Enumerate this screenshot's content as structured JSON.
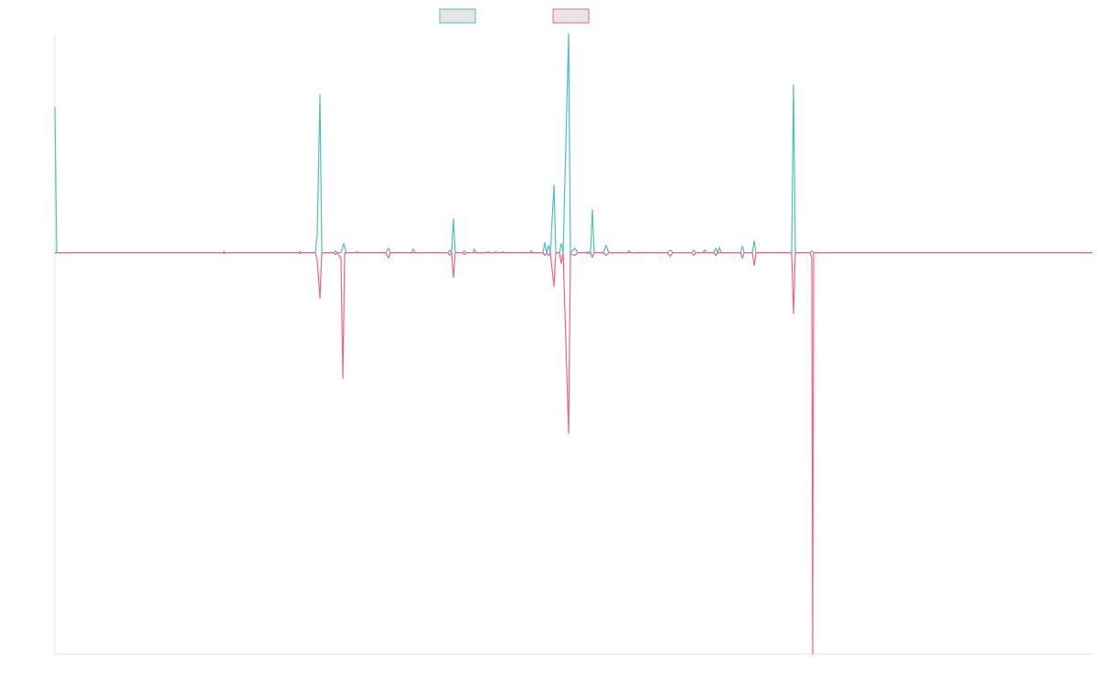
{
  "chart_data": {
    "type": "line",
    "title": "",
    "xlabel": "",
    "ylabel": "",
    "legend_position": "top-center",
    "grid": false,
    "x_range": [
      0,
      1135
    ],
    "ylim": [
      -440,
      240
    ],
    "series": [
      {
        "color": "#4bc0c0",
        "fill": "#e6e6e6",
        "points": [
          [
            0,
            160
          ],
          [
            2,
            0
          ],
          [
            184,
            0
          ],
          [
            185,
            1
          ],
          [
            186,
            0
          ],
          [
            267,
            0
          ],
          [
            268,
            1
          ],
          [
            269,
            0
          ],
          [
            285,
            0
          ],
          [
            287,
            20
          ],
          [
            290,
            173
          ],
          [
            292,
            0
          ],
          [
            305,
            0
          ],
          [
            307,
            2
          ],
          [
            309,
            0
          ],
          [
            313,
            0
          ],
          [
            316,
            10
          ],
          [
            319,
            0
          ],
          [
            329,
            0
          ],
          [
            331,
            1
          ],
          [
            333,
            0
          ],
          [
            362,
            0
          ],
          [
            365,
            5
          ],
          [
            367,
            0
          ],
          [
            390,
            0
          ],
          [
            392,
            4
          ],
          [
            394,
            0
          ],
          [
            430,
            0
          ],
          [
            432,
            3
          ],
          [
            434,
            0
          ],
          [
            436,
            37
          ],
          [
            438,
            0
          ],
          [
            446,
            0
          ],
          [
            448,
            2
          ],
          [
            450,
            0
          ],
          [
            457,
            0
          ],
          [
            459,
            4
          ],
          [
            461,
            0
          ],
          [
            472,
            0
          ],
          [
            474,
            1
          ],
          [
            476,
            0
          ],
          [
            480,
            0
          ],
          [
            482,
            1
          ],
          [
            484,
            0
          ],
          [
            488,
            0
          ],
          [
            490,
            1
          ],
          [
            492,
            0
          ],
          [
            519,
            0
          ],
          [
            521,
            2
          ],
          [
            523,
            0
          ],
          [
            534,
            0
          ],
          [
            536,
            11
          ],
          [
            538,
            0
          ],
          [
            540,
            8
          ],
          [
            542,
            0
          ],
          [
            546,
            74
          ],
          [
            548,
            0
          ],
          [
            552,
            0
          ],
          [
            554,
            10
          ],
          [
            556,
            0
          ],
          [
            562,
            240
          ],
          [
            564,
            0
          ],
          [
            566,
            2
          ],
          [
            569,
            5
          ],
          [
            572,
            0
          ],
          [
            582,
            0
          ],
          [
            584,
            1
          ],
          [
            586,
            0
          ],
          [
            588,
            47
          ],
          [
            590,
            0
          ],
          [
            600,
            0
          ],
          [
            603,
            8
          ],
          [
            606,
            0
          ],
          [
            626,
            0
          ],
          [
            628,
            2
          ],
          [
            630,
            0
          ],
          [
            670,
            0
          ],
          [
            673,
            3
          ],
          [
            676,
            0
          ],
          [
            697,
            0
          ],
          [
            699,
            3
          ],
          [
            701,
            0
          ],
          [
            709,
            0
          ],
          [
            711,
            3
          ],
          [
            713,
            0
          ],
          [
            721,
            0
          ],
          [
            723,
            5
          ],
          [
            725,
            0
          ],
          [
            727,
            6
          ],
          [
            729,
            0
          ],
          [
            750,
            0
          ],
          [
            752,
            7
          ],
          [
            754,
            0
          ],
          [
            763,
            0
          ],
          [
            765,
            13
          ],
          [
            767,
            0
          ],
          [
            806,
            0
          ],
          [
            808,
            184
          ],
          [
            810,
            0
          ],
          [
            826,
            0
          ],
          [
            828,
            2
          ],
          [
            830,
            0
          ],
          [
            1135,
            0
          ]
        ]
      },
      {
        "color": "#f06388",
        "fill": "#e6e6e6",
        "points": [
          [
            0,
            0
          ],
          [
            184,
            0
          ],
          [
            185,
            -1
          ],
          [
            186,
            0
          ],
          [
            267,
            0
          ],
          [
            268,
            -1
          ],
          [
            269,
            0
          ],
          [
            285,
            0
          ],
          [
            287,
            -8
          ],
          [
            290,
            -50
          ],
          [
            292,
            0
          ],
          [
            305,
            0
          ],
          [
            307,
            -2
          ],
          [
            309,
            0
          ],
          [
            311,
            -4
          ],
          [
            313,
            -5
          ],
          [
            315,
            -138
          ],
          [
            317,
            0
          ],
          [
            362,
            0
          ],
          [
            365,
            -6
          ],
          [
            367,
            0
          ],
          [
            430,
            0
          ],
          [
            432,
            -3
          ],
          [
            434,
            0
          ],
          [
            436,
            -27
          ],
          [
            438,
            0
          ],
          [
            446,
            0
          ],
          [
            448,
            -2
          ],
          [
            450,
            0
          ],
          [
            534,
            0
          ],
          [
            536,
            -3
          ],
          [
            538,
            0
          ],
          [
            540,
            -3
          ],
          [
            542,
            0
          ],
          [
            546,
            -37
          ],
          [
            548,
            0
          ],
          [
            552,
            0
          ],
          [
            554,
            -12
          ],
          [
            556,
            0
          ],
          [
            562,
            -198
          ],
          [
            564,
            0
          ],
          [
            566,
            -2
          ],
          [
            569,
            -3
          ],
          [
            572,
            0
          ],
          [
            582,
            0
          ],
          [
            584,
            -1
          ],
          [
            586,
            0
          ],
          [
            588,
            -5
          ],
          [
            590,
            0
          ],
          [
            600,
            0
          ],
          [
            603,
            -3
          ],
          [
            606,
            0
          ],
          [
            670,
            0
          ],
          [
            673,
            -4
          ],
          [
            676,
            0
          ],
          [
            697,
            0
          ],
          [
            699,
            -3
          ],
          [
            701,
            0
          ],
          [
            721,
            0
          ],
          [
            723,
            -3
          ],
          [
            725,
            0
          ],
          [
            750,
            0
          ],
          [
            752,
            -6
          ],
          [
            754,
            0
          ],
          [
            763,
            0
          ],
          [
            765,
            -14
          ],
          [
            767,
            0
          ],
          [
            806,
            0
          ],
          [
            808,
            -67
          ],
          [
            810,
            0
          ],
          [
            826,
            0
          ],
          [
            828,
            -5
          ],
          [
            829,
            -440
          ],
          [
            830,
            0
          ],
          [
            1135,
            0
          ]
        ]
      }
    ]
  }
}
